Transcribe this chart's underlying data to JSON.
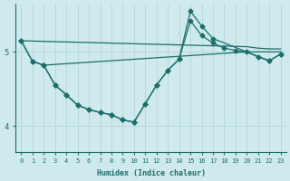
{
  "xlabel": "Humidex (Indice chaleur)",
  "bg_color": "#ceeaed",
  "line_color": "#1d6e6a",
  "grid_color": "#b8d8dc",
  "xlim": [
    -0.5,
    23.5
  ],
  "ylim": [
    3.65,
    5.65
  ],
  "yticks": [
    4,
    5
  ],
  "xticks": [
    0,
    1,
    2,
    3,
    4,
    5,
    6,
    7,
    8,
    9,
    10,
    11,
    12,
    13,
    14,
    15,
    16,
    17,
    18,
    19,
    20,
    21,
    22,
    23
  ],
  "series": [
    {
      "x": [
        0,
        1,
        2,
        3,
        4,
        5,
        6,
        7,
        8,
        9,
        10,
        11,
        12,
        13,
        14,
        15,
        16,
        17,
        18,
        19,
        20,
        21,
        22,
        23
      ],
      "y": [
        5.15,
        4.87,
        4.82,
        4.55,
        4.42,
        4.28,
        4.22,
        4.18,
        4.15,
        4.08,
        4.05,
        4.3,
        4.55,
        4.75,
        4.9,
        5.42,
        5.22,
        5.12,
        5.05,
        5.02,
        5.0,
        4.93,
        4.88,
        4.97
      ],
      "marker": true
    },
    {
      "x": [
        0,
        1,
        2,
        3,
        4,
        5,
        6,
        7,
        8,
        9,
        10,
        11,
        12,
        13,
        14,
        15,
        16,
        17,
        22,
        23
      ],
      "y": [
        5.15,
        4.87,
        4.82,
        4.55,
        4.42,
        4.28,
        4.22,
        4.18,
        4.15,
        4.08,
        4.05,
        4.3,
        4.55,
        4.75,
        4.9,
        5.55,
        5.35,
        5.18,
        4.88,
        4.97
      ],
      "marker": true
    },
    {
      "x": [
        0,
        20,
        21,
        22,
        23
      ],
      "y": [
        5.15,
        5.07,
        5.05,
        5.04,
        5.04
      ],
      "marker": false
    },
    {
      "x": [
        2,
        20,
        21,
        22,
        23
      ],
      "y": [
        4.82,
        5.0,
        5.0,
        5.0,
        5.0
      ],
      "marker": false
    }
  ],
  "markersize": 2.5
}
